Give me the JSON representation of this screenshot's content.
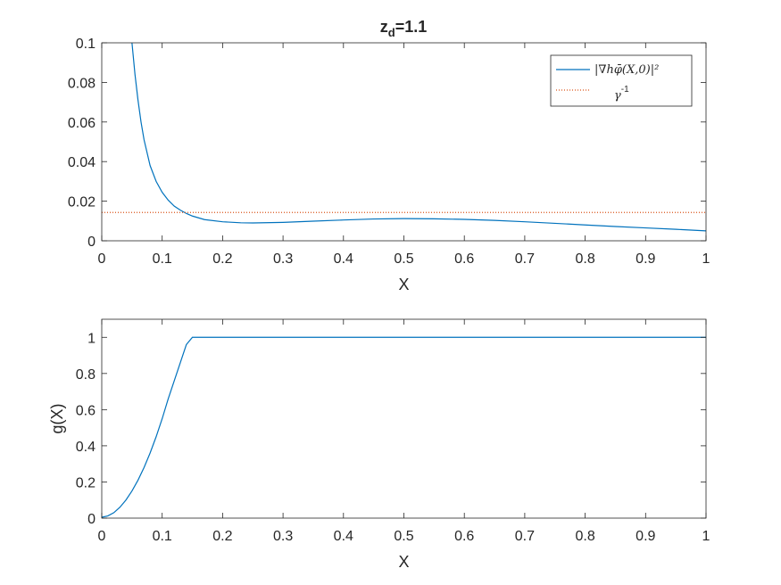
{
  "chart_data": [
    {
      "type": "line",
      "title": "z_d=1.1",
      "title_main": "z",
      "title_sub": "d",
      "title_rest": "=1.1",
      "xlabel": "X",
      "ylabel": "",
      "xlim": [
        0,
        1
      ],
      "ylim": [
        0,
        0.1
      ],
      "xticks": [
        "0",
        "0.1",
        "0.2",
        "0.3",
        "0.4",
        "0.5",
        "0.6",
        "0.7",
        "0.8",
        "0.9",
        "1"
      ],
      "yticks": [
        "0",
        "0.02",
        "0.04",
        "0.06",
        "0.08",
        "0.1"
      ],
      "legend_position": "top-right",
      "series": [
        {
          "name": "|∇hφ̄(X,0)|²",
          "color": "#0072BD",
          "style": "solid",
          "x": [
            0.05,
            0.055,
            0.06,
            0.065,
            0.07,
            0.08,
            0.09,
            0.1,
            0.11,
            0.12,
            0.13,
            0.14,
            0.15,
            0.17,
            0.2,
            0.23,
            0.25,
            0.3,
            0.35,
            0.4,
            0.45,
            0.5,
            0.55,
            0.6,
            0.65,
            0.7,
            0.75,
            0.8,
            0.85,
            0.9,
            0.95,
            1.0
          ],
          "y": [
            0.1,
            0.084,
            0.071,
            0.06,
            0.051,
            0.038,
            0.03,
            0.0245,
            0.0205,
            0.0175,
            0.0155,
            0.0138,
            0.0125,
            0.0107,
            0.0096,
            0.0091,
            0.009,
            0.0093,
            0.0099,
            0.0105,
            0.011,
            0.0112,
            0.0111,
            0.0108,
            0.0103,
            0.0096,
            0.0088,
            0.008,
            0.0072,
            0.0065,
            0.0058,
            0.005
          ]
        },
        {
          "name": "γ^-1",
          "name_main": "γ",
          "name_sup": "-1",
          "color": "#D95319",
          "style": "dotted",
          "x": [
            0,
            1
          ],
          "y": [
            0.0143,
            0.0143
          ]
        }
      ]
    },
    {
      "type": "line",
      "title": "",
      "xlabel": "X",
      "ylabel": "g(X)",
      "xlim": [
        0,
        1
      ],
      "ylim": [
        0,
        1.1
      ],
      "xticks": [
        "0",
        "0.1",
        "0.2",
        "0.3",
        "0.4",
        "0.5",
        "0.6",
        "0.7",
        "0.8",
        "0.9",
        "1"
      ],
      "yticks": [
        "0",
        "0.2",
        "0.4",
        "0.6",
        "0.8",
        "1"
      ],
      "series": [
        {
          "color": "#0072BD",
          "style": "solid",
          "x": [
            0,
            0.01,
            0.02,
            0.03,
            0.04,
            0.05,
            0.06,
            0.07,
            0.08,
            0.09,
            0.1,
            0.11,
            0.12,
            0.13,
            0.14,
            0.15,
            0.2,
            0.3,
            0.4,
            0.5,
            0.6,
            0.7,
            0.8,
            0.9,
            1.0
          ],
          "y": [
            0.005,
            0.012,
            0.03,
            0.06,
            0.1,
            0.15,
            0.21,
            0.28,
            0.36,
            0.45,
            0.55,
            0.66,
            0.76,
            0.86,
            0.96,
            1.0,
            1.0,
            1.0,
            1.0,
            1.0,
            1.0,
            1.0,
            1.0,
            1.0,
            1.0
          ]
        }
      ]
    }
  ]
}
